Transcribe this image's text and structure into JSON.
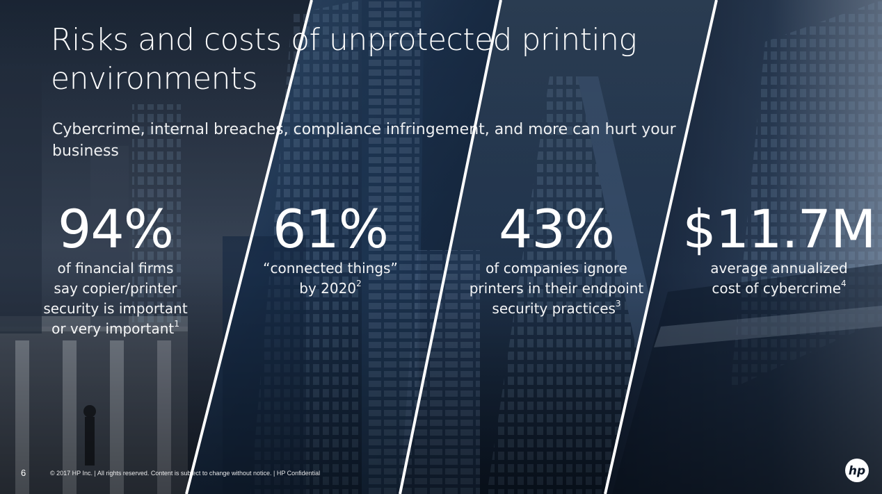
{
  "slide": {
    "title_line1": "Risks and costs of unprotected printing",
    "title_line2": "environments",
    "subtitle_line1": "Cybercrime, internal breaches, compliance infringement, and more can hurt your",
    "subtitle_line2": "business",
    "stats": [
      {
        "value": "94%",
        "desc_lines": [
          "of financial firms",
          "say copier/printer",
          "security is important",
          "or very important"
        ],
        "footnote": "1"
      },
      {
        "value": "61%",
        "desc_lines": [
          "“connected things”",
          "by 2020"
        ],
        "footnote": "2"
      },
      {
        "value": "43%",
        "desc_lines": [
          "of companies ignore",
          "printers in their endpoint",
          "security practices"
        ],
        "footnote": "3"
      },
      {
        "value": "$11.7M",
        "desc_lines": [
          "average annualized",
          "cost of cybercrime"
        ],
        "footnote": "4"
      }
    ],
    "page_number": "6",
    "footer_text": "© 2017 HP Inc. | All rights reserved. Content is subject to change without notice. | HP Confidential",
    "logo_text": "hp",
    "colors": {
      "background": "#0b1626",
      "text": "#ffffff",
      "divider": "#ffffff"
    }
  }
}
